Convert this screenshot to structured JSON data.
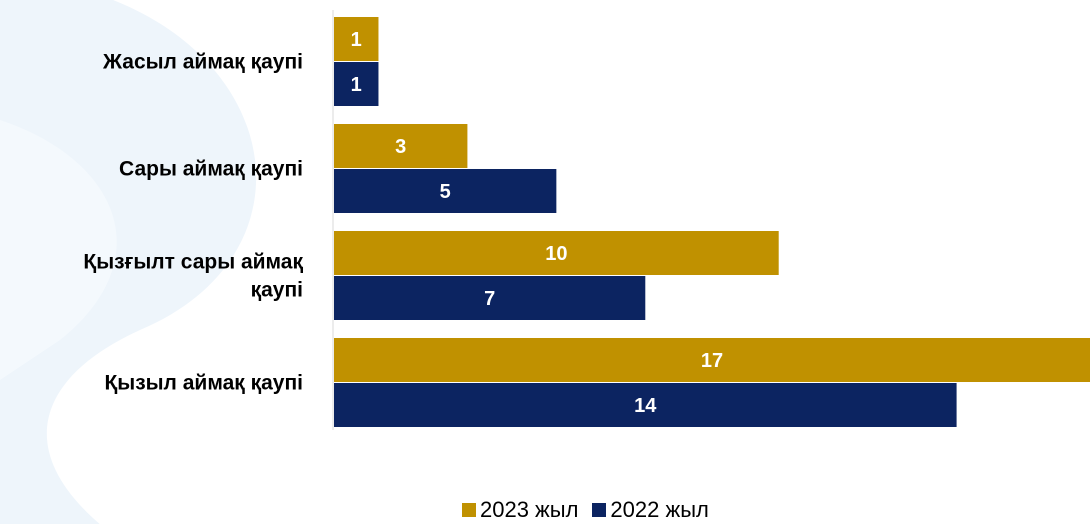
{
  "chart_data": {
    "type": "bar",
    "orientation": "horizontal",
    "categories": [
      "Жасыл аймақ қаупі",
      "Сары аймақ қаупі",
      "Қызғылт сары аймақ қаупі",
      "Қызыл аймақ қаупі"
    ],
    "category_label_lines": [
      [
        "Жасыл аймақ қаупі"
      ],
      [
        "Сары аймақ қаупі"
      ],
      [
        "Қызғылт сары аймақ",
        "қаупі"
      ],
      [
        "Қызыл аймақ қаупі"
      ]
    ],
    "series": [
      {
        "name": "2023 жыл",
        "color": "#C09100",
        "values": [
          1,
          3,
          10,
          17
        ]
      },
      {
        "name": "2022 жыл",
        "color": "#0C2461",
        "values": [
          1,
          5,
          7,
          14
        ]
      }
    ],
    "xlim": [
      0,
      17
    ],
    "grid": false,
    "data_labels": true,
    "legend_position": "bottom"
  },
  "legend": {
    "items": [
      {
        "label": "2023 жыл",
        "color": "#C09100"
      },
      {
        "label": "2022 жыл",
        "color": "#0C2461"
      }
    ]
  }
}
